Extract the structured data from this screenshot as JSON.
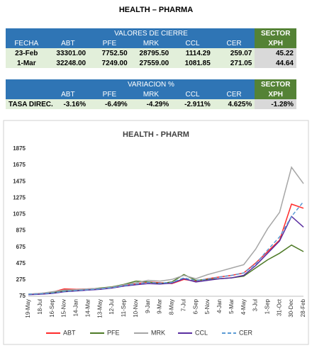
{
  "header": {
    "title": "HEALTH – PHARMA"
  },
  "table1": {
    "group_header": "VALORES DE CIERRE",
    "sector_header": "SECTOR",
    "columns": [
      "FECHA",
      "ABT",
      "PFE",
      "MRK",
      "CCL",
      "CER",
      "XPH"
    ],
    "rows": [
      [
        "23-Feb",
        "33301.00",
        "7752.50",
        "28795.50",
        "1114.29",
        "259.07",
        "45.22"
      ],
      [
        "1-Mar",
        "32248.00",
        "7249.00",
        "27559.00",
        "1081.85",
        "271.05",
        "44.64"
      ]
    ]
  },
  "table2": {
    "group_header": "VARIACION %",
    "sector_header": "SECTOR",
    "columns": [
      "ABT",
      "PFE",
      "MRK",
      "CCL",
      "CER",
      "XPH"
    ],
    "rows": [
      [
        "TASA DIREC.",
        "-3.16%",
        "-6.49%",
        "-4.29%",
        "-2.911%",
        "4.625%",
        "-1.28%"
      ]
    ]
  },
  "chart_data": {
    "type": "line",
    "title": "HEALTH - PHARM",
    "categories": [
      "19-May",
      "18-Jul",
      "16-Sep",
      "15-Nov",
      "14-Jan",
      "14-Mar",
      "13-May",
      "12-Jul",
      "11-Sep",
      "10-Nov",
      "9-Jan",
      "9-Mar",
      "8-May",
      "7-Jul",
      "6-Sep",
      "5-Nov",
      "4-Jan",
      "5-Mar",
      "4-May",
      "3-Jul",
      "1-Sep",
      "31-Oct",
      "30-Dec",
      "28-Feb"
    ],
    "ylim": [
      75,
      1875
    ],
    "yticks": [
      75,
      275,
      475,
      675,
      875,
      1075,
      1275,
      1475,
      1675,
      1875
    ],
    "grid": false,
    "legend": "bottom",
    "series": [
      {
        "name": "ABT",
        "color": "#ff2b2b",
        "values": [
          100,
          110,
          125,
          165,
          160,
          165,
          170,
          190,
          210,
          225,
          250,
          240,
          230,
          280,
          260,
          290,
          310,
          330,
          360,
          480,
          620,
          760,
          1200,
          1150
        ]
      },
      {
        "name": "PFE",
        "color": "#4e7a27",
        "values": [
          100,
          105,
          120,
          140,
          150,
          160,
          175,
          190,
          220,
          260,
          250,
          230,
          250,
          340,
          270,
          280,
          290,
          300,
          320,
          420,
          520,
          600,
          700,
          620
        ]
      },
      {
        "name": "MRK",
        "color": "#a6a6a6",
        "values": [
          100,
          110,
          130,
          150,
          155,
          165,
          170,
          185,
          215,
          240,
          270,
          260,
          280,
          330,
          290,
          340,
          380,
          420,
          460,
          650,
          900,
          1100,
          1650,
          1450
        ]
      },
      {
        "name": "CCL",
        "color": "#5a2ea0",
        "values": [
          95,
          100,
          110,
          130,
          140,
          150,
          160,
          175,
          200,
          215,
          230,
          225,
          235,
          290,
          250,
          270,
          290,
          300,
          330,
          450,
          600,
          750,
          1050,
          920
        ]
      },
      {
        "name": "CER",
        "color": "#5b9bd5",
        "dashed": true,
        "values": [
          100,
          105,
          115,
          135,
          145,
          155,
          165,
          180,
          205,
          225,
          245,
          235,
          245,
          300,
          265,
          285,
          310,
          330,
          360,
          470,
          640,
          800,
          1050,
          1230
        ]
      }
    ]
  }
}
